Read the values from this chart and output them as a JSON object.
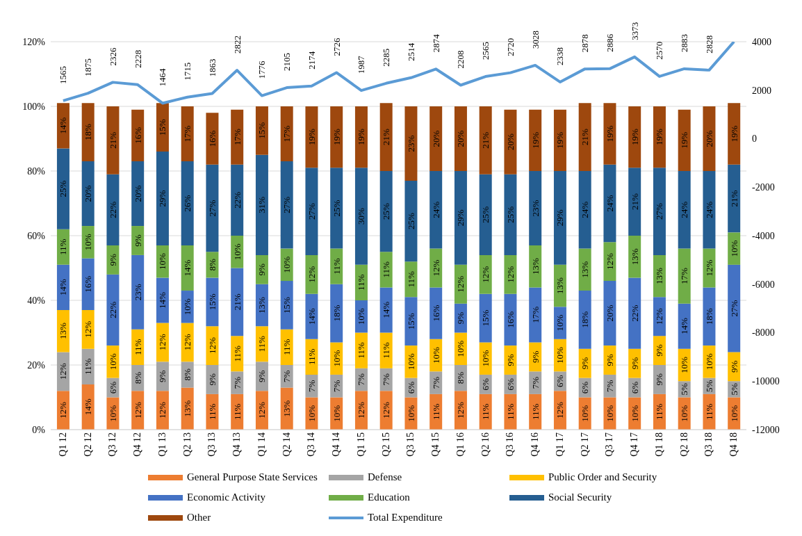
{
  "chart_data": {
    "type": "bar",
    "stacked": true,
    "categories": [
      "Q1 12",
      "Q2 12",
      "Q3 12",
      "Q4 12",
      "Q1 13",
      "Q2 13",
      "Q3 13",
      "Q4 13",
      "Q1 14",
      "Q2 14",
      "Q3 14",
      "Q4 14",
      "Q1 15",
      "Q2 15",
      "Q3 15",
      "Q4 15",
      "Q1 16",
      "Q2 16",
      "Q3 16",
      "Q4 16",
      "Q1 17",
      "Q2 17",
      "Q3 17",
      "Q4 17",
      "Q1 18",
      "Q2 18",
      "Q3 18",
      "Q4 18"
    ],
    "series": [
      {
        "name": "General Purpose State Services",
        "color": "#ed7d31",
        "values": [
          12,
          14,
          10,
          12,
          12,
          13,
          11,
          11,
          12,
          13,
          10,
          10,
          12,
          12,
          10,
          11,
          12,
          11,
          11,
          11,
          12,
          10,
          10,
          10,
          11,
          10,
          11,
          10
        ],
        "value_labels": [
          "12%",
          "14%",
          "10%",
          "12%",
          "12%",
          "13%",
          "11%",
          "11%",
          "12%",
          "13%",
          "10%",
          "10%",
          "12%",
          "12%",
          "10%",
          "11%",
          "12%",
          "11%",
          "11%",
          "11%",
          "12%",
          "10%",
          "10%",
          "10%",
          "11%",
          "10%",
          "11%",
          "10%"
        ]
      },
      {
        "name": "Defense",
        "color": "#a5a5a5",
        "values": [
          12,
          11,
          6,
          8,
          9,
          8,
          9,
          7,
          9,
          7,
          7,
          7,
          7,
          7,
          6,
          7,
          8,
          6,
          6,
          7,
          6,
          6,
          7,
          6,
          9,
          5,
          5,
          5
        ],
        "value_labels": [
          "12%",
          "11%",
          "6%",
          "8%",
          "9%",
          "8%",
          "9%",
          "7%",
          "9%",
          "7%",
          "7%",
          "7%",
          "7%",
          "7%",
          "6%",
          "7%",
          "8%",
          "6%",
          "6%",
          "7%",
          "6%",
          "6%",
          "7%",
          "6%",
          "9%",
          "5%",
          "5%",
          "5%"
        ]
      },
      {
        "name": "Public Order and Security",
        "color": "#ffc000",
        "values": [
          13,
          12,
          10,
          11,
          12,
          12,
          12,
          11,
          11,
          11,
          11,
          10,
          11,
          11,
          10,
          10,
          10,
          10,
          9,
          9,
          10,
          9,
          9,
          9,
          9,
          10,
          10,
          9
        ],
        "value_labels": [
          "13%",
          "12%",
          "10%",
          "11%",
          "12%",
          "12%",
          "12%",
          "11%",
          "11%",
          "11%",
          "11%",
          "10%",
          "11%",
          "11%",
          "10%",
          "10%",
          "10%",
          "10%",
          "9%",
          "9%",
          "10%",
          "9%",
          "9%",
          "9%",
          "9%",
          "10%",
          "10%",
          "9%"
        ]
      },
      {
        "name": "Economic Activity",
        "color": "#4472c4",
        "values": [
          14,
          16,
          22,
          23,
          14,
          10,
          15,
          21,
          13,
          15,
          14,
          18,
          10,
          14,
          15,
          16,
          9,
          15,
          16,
          17,
          10,
          18,
          20,
          22,
          12,
          14,
          18,
          27
        ],
        "value_labels": [
          "14%",
          "16%",
          "22%",
          "23%",
          "14%",
          "10%",
          "15%",
          "21%",
          "13%",
          "15%",
          "14%",
          "18%",
          "10%",
          "14%",
          "15%",
          "16%",
          "9%",
          "15%",
          "16%",
          "17%",
          "10%",
          "18%",
          "20%",
          "22%",
          "12%",
          "14%",
          "18%",
          "27%"
        ]
      },
      {
        "name": "Education",
        "color": "#70ad47",
        "values": [
          11,
          10,
          9,
          9,
          10,
          14,
          8,
          10,
          9,
          10,
          12,
          11,
          11,
          11,
          11,
          12,
          12,
          12,
          12,
          13,
          13,
          13,
          12,
          13,
          13,
          17,
          12,
          10
        ],
        "value_labels": [
          "11%",
          "10%",
          "9%",
          "9%",
          "10%",
          "14%",
          "8%",
          "10%",
          "9%",
          "10%",
          "12%",
          "11%",
          "11%",
          "11%",
          "11%",
          "12%",
          "12%",
          "12%",
          "12%",
          "13%",
          "13%",
          "13%",
          "12%",
          "13%",
          "13%",
          "17%",
          "12%",
          "10%"
        ]
      },
      {
        "name": "Social Security",
        "color": "#255e91",
        "values": [
          25,
          20,
          22,
          20,
          29,
          26,
          27,
          22,
          31,
          27,
          27,
          25,
          30,
          25,
          25,
          24,
          29,
          25,
          25,
          23,
          29,
          24,
          24,
          21,
          27,
          24,
          24,
          21
        ],
        "value_labels": [
          "25%",
          "20%",
          "22%",
          "20%",
          "29%",
          "26%",
          "27%",
          "22%",
          "31%",
          "27%",
          "27%",
          "25%",
          "30%",
          "25%",
          "25%",
          "24%",
          "29%",
          "25%",
          "25%",
          "23%",
          "29%",
          "24%",
          "24%",
          "21%",
          "27%",
          "24%",
          "24%",
          "21%"
        ]
      },
      {
        "name": "Other",
        "color": "#9e480e",
        "values": [
          14,
          18,
          21,
          16,
          15,
          17,
          16,
          17,
          15,
          17,
          19,
          19,
          19,
          21,
          23,
          20,
          20,
          21,
          20,
          19,
          19,
          21,
          19,
          19,
          19,
          19,
          20,
          19
        ],
        "value_labels": [
          "14%",
          "18%",
          "21%",
          "16%",
          "15%",
          "17%",
          "16%",
          "17%",
          "15%",
          "17%",
          "19%",
          "19%",
          "19%",
          "21%",
          "23%",
          "20%",
          "20%",
          "21%",
          "20%",
          "19%",
          "19%",
          "21%",
          "19%",
          "19%",
          "19%",
          "19%",
          "20%",
          "19%"
        ]
      },
      {
        "name": "Total Expenditure",
        "type": "line",
        "axis": "y2",
        "color": "#5b9bd5",
        "values": [
          1565,
          1875,
          2326,
          2228,
          1464,
          1715,
          1863,
          2822,
          1776,
          2105,
          2174,
          2726,
          1987,
          2285,
          2514,
          2874,
          2208,
          2565,
          2720,
          3028,
          2338,
          2878,
          2886,
          3373,
          2570,
          2883,
          2828,
          4000
        ],
        "value_labels": [
          "1565",
          "1875",
          "2326",
          "2228",
          "1464",
          "1715",
          "1863",
          "2822",
          "1776",
          "2105",
          "2174",
          "2726",
          "1987",
          "2285",
          "2514",
          "2874",
          "2208",
          "2565",
          "2720",
          "3028",
          "2338",
          "2878",
          "2886",
          "3373",
          "2570",
          "2883",
          "2828",
          null
        ]
      }
    ],
    "ylim": [
      0,
      120
    ],
    "yticks": [
      {
        "value": 0,
        "label": "0%"
      },
      {
        "value": 20,
        "label": "20%"
      },
      {
        "value": 40,
        "label": "40%"
      },
      {
        "value": 60,
        "label": "60%"
      },
      {
        "value": 80,
        "label": "80%"
      },
      {
        "value": 100,
        "label": "100%"
      },
      {
        "value": 120,
        "label": "120%"
      }
    ],
    "y2lim": [
      -12000,
      4000
    ],
    "y2ticks": [
      -12000,
      -10000,
      -8000,
      -6000,
      -4000,
      -2000,
      0,
      2000,
      4000
    ],
    "grid": "y",
    "legend": "bottom",
    "marker": "none",
    "line_style": "solid"
  }
}
